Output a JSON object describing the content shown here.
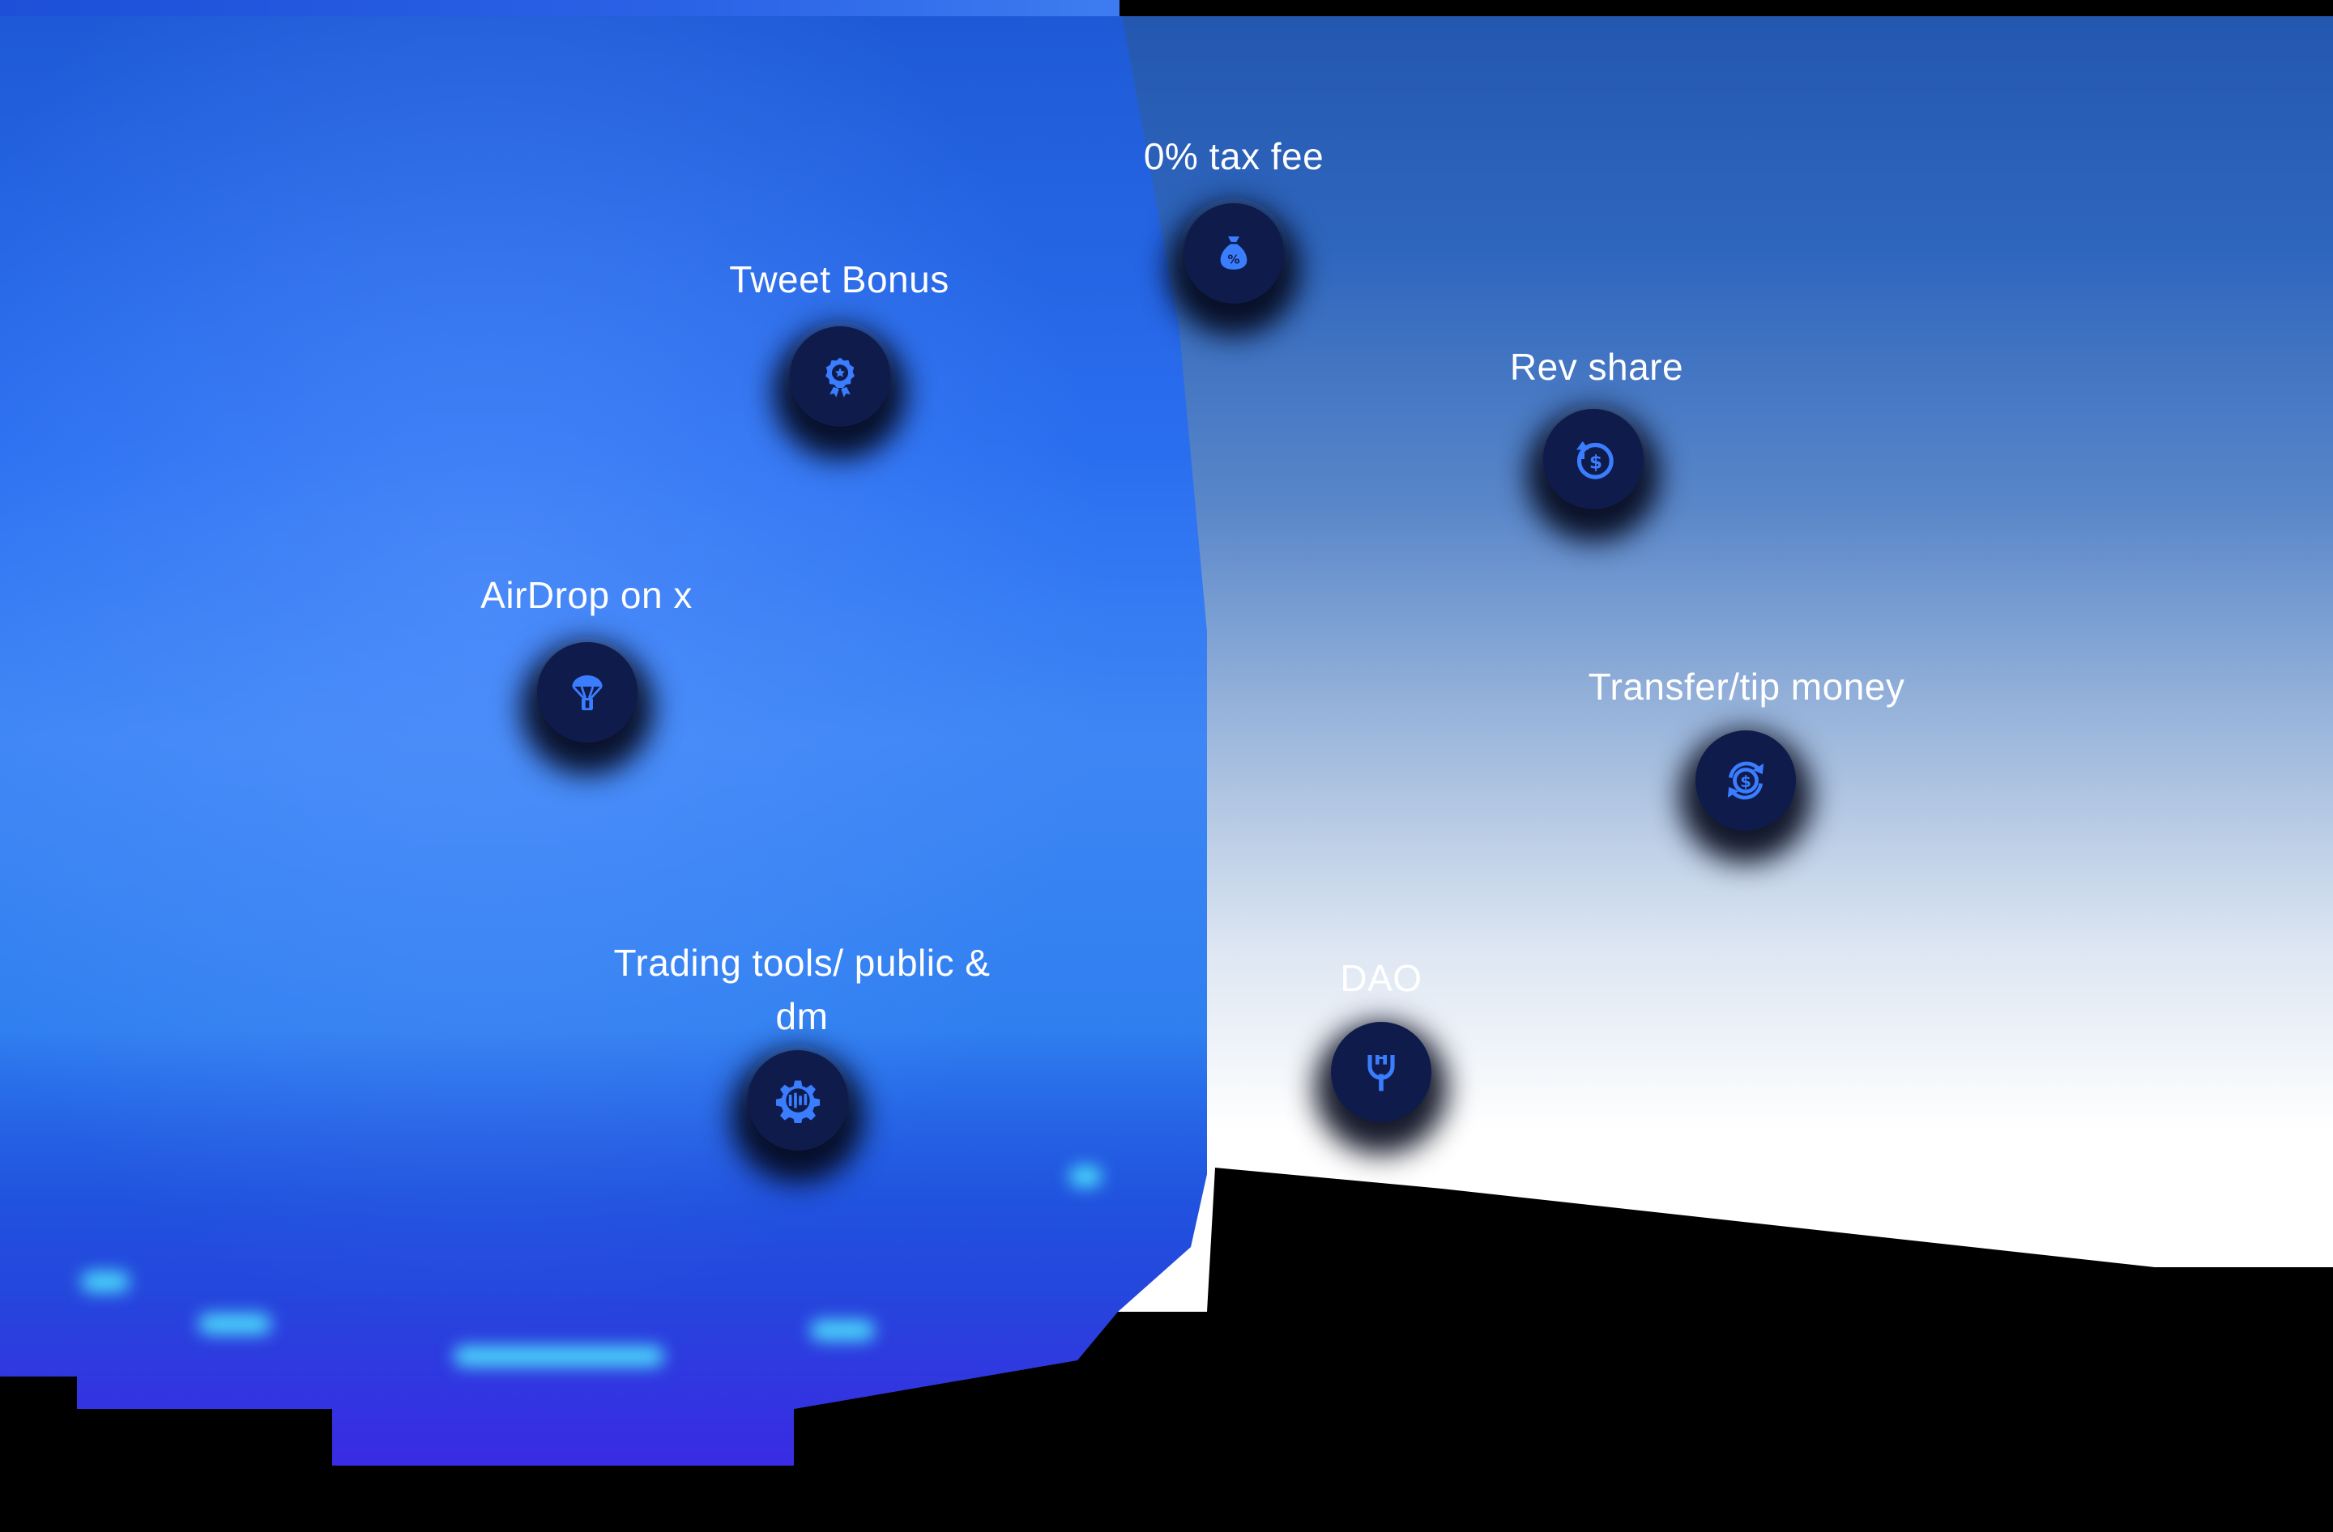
{
  "colors": {
    "node_fill": "#0f1b4a",
    "icon_color": "#3a7dff",
    "label_color": "#ffffff",
    "left_panel_blue": "#2a6ef0",
    "sky_top": "#2458b0",
    "background": "#000000"
  },
  "features": [
    {
      "label": "0% tax fee",
      "icon": "money-bag-percent-icon"
    },
    {
      "label": "Tweet Bonus",
      "icon": "award-badge-icon"
    },
    {
      "label": "Rev share",
      "icon": "revenue-share-icon"
    },
    {
      "label": "AirDrop on x",
      "icon": "parachute-airdrop-icon"
    },
    {
      "label": "Transfer/tip money",
      "icon": "money-transfer-icon"
    },
    {
      "label": "Trading tools/ public & dm",
      "icon": "trading-gear-icon"
    },
    {
      "label": "DAO",
      "icon": "dao-fork-icon"
    }
  ]
}
